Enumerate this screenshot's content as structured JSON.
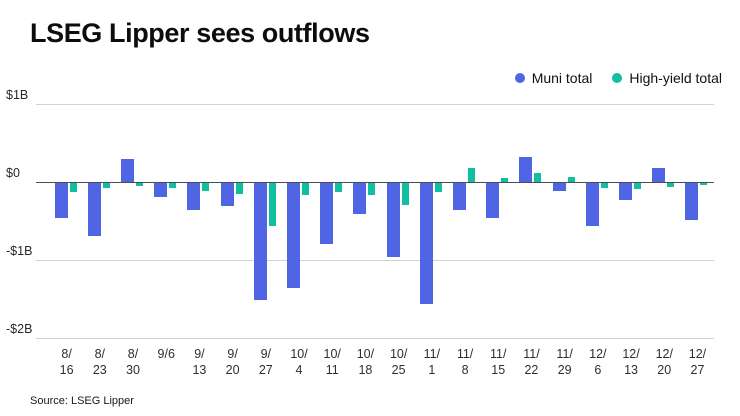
{
  "chart_data": {
    "type": "bar",
    "title": "LSEG Lipper sees outflows",
    "categories": [
      "8/16",
      "8/23",
      "8/30",
      "9/6",
      "9/13",
      "9/20",
      "9/27",
      "10/4",
      "10/11",
      "10/18",
      "10/25",
      "11/1",
      "11/8",
      "11/15",
      "11/22",
      "11/29",
      "12/6",
      "12/13",
      "12/20",
      "12/27"
    ],
    "series": [
      {
        "name": "Muni total",
        "color": "#5065e4",
        "values": [
          -0.45,
          -0.68,
          0.3,
          -0.18,
          -0.35,
          -0.3,
          -1.5,
          -1.35,
          -0.78,
          -0.4,
          -0.95,
          -1.55,
          -0.35,
          -0.45,
          0.32,
          -0.1,
          -0.55,
          -0.22,
          0.18,
          -0.48
        ]
      },
      {
        "name": "High-yield total",
        "color": "#0fbf9f",
        "values": [
          -0.12,
          -0.06,
          -0.04,
          -0.06,
          -0.1,
          -0.14,
          -0.55,
          -0.15,
          -0.12,
          -0.15,
          -0.28,
          -0.12,
          0.18,
          0.05,
          0.12,
          0.06,
          -0.06,
          -0.08,
          -0.05,
          -0.02
        ]
      }
    ],
    "xlabel": "",
    "ylabel": "",
    "unit": "$B",
    "ylim": [
      -2,
      1
    ],
    "y_ticks": [
      {
        "label": "$1B",
        "value": 1
      },
      {
        "label": "$0",
        "value": 0
      },
      {
        "label": "-$1B",
        "value": -1
      },
      {
        "label": "-$2B",
        "value": -2
      }
    ],
    "grid": "horizontal",
    "legend_position": "top-right"
  },
  "source": "Source: LSEG Lipper"
}
